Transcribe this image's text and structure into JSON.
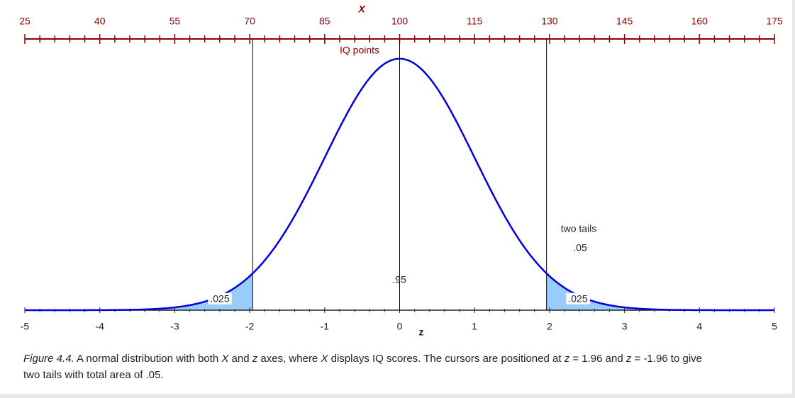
{
  "chart_data": {
    "type": "normal",
    "mean": 0,
    "sd": 1,
    "color": "#0000dd",
    "tail_color": "#99ccff",
    "xlim": [
      -5,
      5
    ],
    "xticks": [
      -5,
      -4,
      -3,
      -2,
      -1,
      0,
      1,
      2,
      3,
      4,
      5
    ],
    "xlabel": "z",
    "ylim": [
      0,
      0.4
    ],
    "x2lim": [
      25,
      175
    ],
    "x2ticks": [
      25,
      40,
      55,
      70,
      85,
      100,
      115,
      130,
      145,
      160,
      175
    ],
    "x2label": "X",
    "x2sublabel": "IQ points",
    "x2color": "#8b0000",
    "cursors": [
      -1.96,
      1.96
    ],
    "annotations": [
      ".025",
      ".95",
      ".025",
      "two tails",
      ".05"
    ],
    "caption": [
      [
        {
          "text": "Figure 4.4.",
          "italic": true
        },
        {
          "text": " A normal distribution with both ",
          "italic": false
        },
        {
          "text": "X",
          "italic": true
        },
        {
          "text": " and ",
          "italic": false
        },
        {
          "text": "z",
          "italic": true
        },
        {
          "text": " axes, where ",
          "italic": false
        },
        {
          "text": "X",
          "italic": true
        },
        {
          "text": " displays IQ scores. The cursors are positioned at ",
          "italic": false
        },
        {
          "text": "z",
          "italic": true
        },
        {
          "text": " = 1.96 and ",
          "italic": false
        },
        {
          "text": "z",
          "italic": true
        },
        {
          "text": " = -1.96 to give",
          "italic": false
        }
      ],
      [
        {
          "text": "two tails with total area of .05.",
          "italic": false
        }
      ]
    ]
  }
}
